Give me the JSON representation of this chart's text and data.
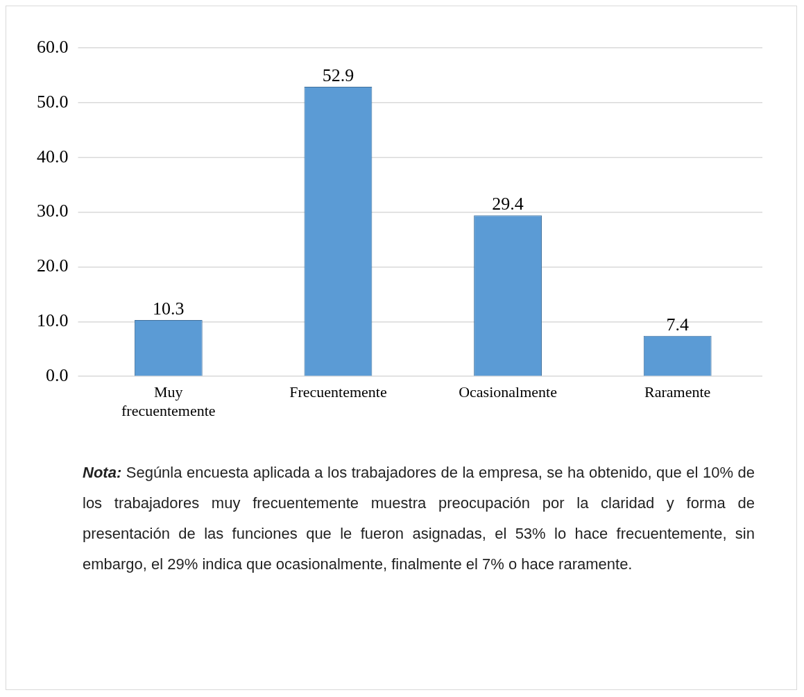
{
  "chart_data": {
    "type": "bar",
    "categories": [
      "Muy frecuentemente",
      "Frecuentemente",
      "Ocasionalmente",
      "Raramente"
    ],
    "values": [
      10.3,
      52.9,
      29.4,
      7.4
    ],
    "color": "#5b9bd5",
    "ylim": [
      0,
      60
    ],
    "yticks": [
      {
        "value": 0,
        "label": "0.0"
      },
      {
        "value": 10,
        "label": "10.0"
      },
      {
        "value": 20,
        "label": "20.0"
      },
      {
        "value": 30,
        "label": "30.0"
      },
      {
        "value": 40,
        "label": "40.0"
      },
      {
        "value": 50,
        "label": "50.0"
      },
      {
        "value": 60,
        "label": "60.0"
      }
    ],
    "grid": "y",
    "data_labels": true,
    "annotations": [
      "Nota: Segúnla encuesta aplicada a los trabajadores de la empresa, se ha obtenido, que el 10% de los trabajadores muy frecuentemente muestra preocupación por la claridad y forma de presentación de las funciones que le fueron asignadas, el 53% lo hace frecuentemente, sin embargo, el 29% indica que ocasionalmente, finalmente el 7% o hace raramente."
    ]
  }
}
